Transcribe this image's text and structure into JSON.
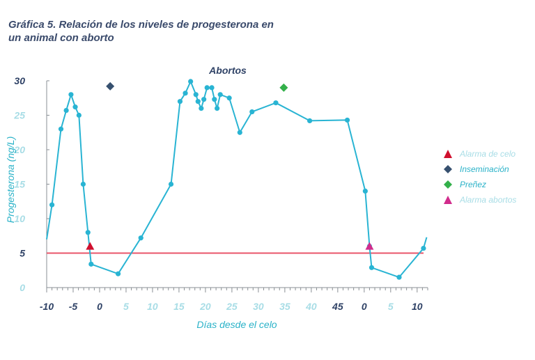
{
  "chart_data": {
    "type": "line",
    "title_line1": "Gráfica 5. Relación de los niveles de progesterona en",
    "title_line2": "un animal con aborto",
    "xlabel": "Días desde el celo",
    "ylabel": "Progesterona (ng/L)",
    "annotation": "Abortos",
    "ylim": [
      0,
      30
    ],
    "yticks": [
      "0",
      "5",
      "10",
      "15",
      "20",
      "25",
      "30"
    ],
    "xticks": [
      "-10",
      "-5",
      "0",
      "5",
      "10",
      "15",
      "20",
      "25",
      "30",
      "35",
      "40",
      "45",
      "0",
      "5",
      "10"
    ],
    "threshold": 5,
    "series": [
      {
        "values": [
          [
            -10,
            7.0
          ],
          [
            -9,
            12.0
          ],
          [
            -7.3,
            23.0
          ],
          [
            -6.3,
            25.7
          ],
          [
            -5.4,
            28.0
          ],
          [
            -4.6,
            26.2
          ],
          [
            -3.9,
            25.0
          ],
          [
            -3.1,
            15.0
          ],
          [
            -2.2,
            8.0
          ],
          [
            -1.6,
            3.4
          ],
          [
            3.5,
            2.0
          ],
          [
            7.8,
            7.2
          ],
          [
            13.5,
            15.0
          ],
          [
            15.2,
            27.0
          ],
          [
            16.2,
            28.2
          ],
          [
            17.2,
            29.9
          ],
          [
            18.2,
            28.0
          ],
          [
            18.6,
            27.0
          ],
          [
            19.2,
            26.0
          ],
          [
            19.7,
            27.3
          ],
          [
            20.3,
            29.0
          ],
          [
            21.2,
            29.0
          ],
          [
            21.7,
            27.3
          ],
          [
            22.2,
            26.0
          ],
          [
            22.8,
            28.0
          ],
          [
            24.5,
            27.5
          ],
          [
            26.5,
            22.5
          ],
          [
            28.8,
            25.5
          ],
          [
            33.3,
            26.8
          ],
          [
            39.7,
            24.2
          ],
          [
            46.8,
            24.3
          ],
          [
            50.2,
            14.0
          ],
          [
            51.0,
            6.0
          ],
          [
            51.4,
            2.9
          ],
          [
            56.6,
            1.5
          ],
          [
            61.2,
            5.7
          ],
          [
            61.8,
            7.3
          ]
        ]
      }
    ],
    "events": [
      {
        "type": "alarma_celo",
        "x": -1.8,
        "y": 6.0
      },
      {
        "type": "inseminacion",
        "x": 2.0,
        "y": 29.2
      },
      {
        "type": "preñez",
        "x": 34.8,
        "y": 29.0
      },
      {
        "type": "alarma_abortos",
        "x": 51.0,
        "y": 6.0
      }
    ],
    "legend": [
      {
        "label": "Alarma de celo",
        "color": "#d0102e",
        "label_color": "#a8dde6",
        "marker": "triangle"
      },
      {
        "label": "Inseminación",
        "color": "#36506f",
        "label_color": "#2ab2c8",
        "marker": "diamond"
      },
      {
        "label": "Preñez",
        "color": "#33b04a",
        "label_color": "#2ab2c8",
        "marker": "diamond"
      },
      {
        "label": "Alarma abortos",
        "color": "#d12c8c",
        "label_color": "#a8dde6",
        "marker": "triangle"
      }
    ],
    "colors": {
      "line": "#29b4d3",
      "threshold": "#e8556a",
      "axis": "#8a8f94",
      "tick_label": "#2f4266",
      "tick_label_light": "#a8dde6",
      "label": "#2ab2c8",
      "title": "#3a4a6b"
    }
  }
}
